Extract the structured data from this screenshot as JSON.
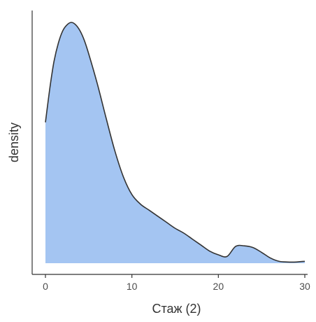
{
  "chart_data": {
    "type": "area",
    "title": "",
    "xlabel": "Стаж (2)",
    "ylabel": "density",
    "xlim": [
      -1.5,
      31
    ],
    "ylim": [
      0,
      1
    ],
    "y_scale": "relative density (0 = baseline, 1 = peak)",
    "xticks": [
      0,
      10,
      20,
      30
    ],
    "xtick_labels": [
      "0",
      "10",
      "20",
      "30"
    ],
    "yticks": [],
    "grid": false,
    "legend": "none",
    "x": [
      0,
      0.3,
      0.6,
      1,
      1.5,
      2,
      2.5,
      3,
      3.5,
      4,
      4.5,
      5,
      6,
      7,
      8,
      9,
      10,
      11,
      12,
      13,
      14,
      15,
      16,
      17,
      18,
      19,
      20,
      21,
      22,
      23,
      24,
      25,
      26,
      27,
      28,
      29,
      30
    ],
    "y": [
      0.585,
      0.67,
      0.75,
      0.84,
      0.915,
      0.965,
      0.99,
      1.0,
      0.99,
      0.965,
      0.925,
      0.87,
      0.745,
      0.605,
      0.47,
      0.36,
      0.285,
      0.245,
      0.22,
      0.195,
      0.17,
      0.145,
      0.125,
      0.1,
      0.075,
      0.05,
      0.035,
      0.028,
      0.07,
      0.072,
      0.065,
      0.045,
      0.022,
      0.008,
      0.005,
      0.005,
      0.008
    ],
    "fill_color": "#a4c5f2",
    "line_color": "#333333",
    "axis_color": "#333333"
  }
}
